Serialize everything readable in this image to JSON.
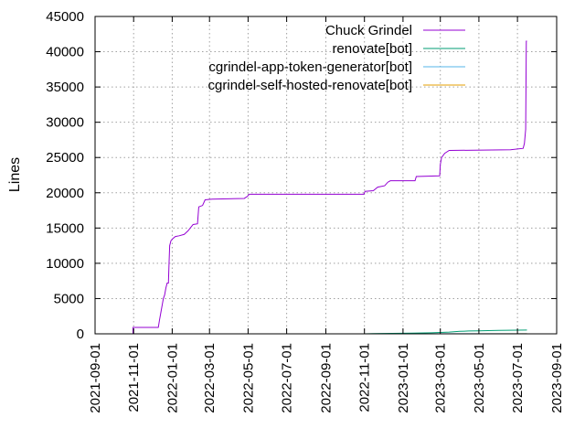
{
  "chart_data": {
    "type": "line",
    "ylabel": "Lines",
    "xlim": [
      "2021-09-01",
      "2023-09-01"
    ],
    "ylim": [
      0,
      45000
    ],
    "y_ticks": [
      0,
      5000,
      10000,
      15000,
      20000,
      25000,
      30000,
      35000,
      40000,
      45000
    ],
    "x_ticks": [
      "2021-09-01",
      "2021-11-01",
      "2022-01-01",
      "2022-03-01",
      "2022-05-01",
      "2022-07-01",
      "2022-09-01",
      "2022-11-01",
      "2023-01-01",
      "2023-03-01",
      "2023-05-01",
      "2023-07-01",
      "2023-09-01"
    ],
    "grid": true,
    "legend_position": "top-right",
    "series": [
      {
        "name": "Chuck Grindel",
        "color": "#9400d3",
        "points": [
          [
            "2021-10-31",
            0
          ],
          [
            "2021-10-31",
            900
          ],
          [
            "2021-12-10",
            900
          ],
          [
            "2021-12-12",
            2000
          ],
          [
            "2021-12-14",
            3000
          ],
          [
            "2021-12-16",
            4000
          ],
          [
            "2021-12-18",
            5000
          ],
          [
            "2021-12-20",
            5500
          ],
          [
            "2021-12-22",
            6500
          ],
          [
            "2021-12-24",
            7200
          ],
          [
            "2021-12-26",
            7200
          ],
          [
            "2021-12-27",
            10000
          ],
          [
            "2021-12-28",
            12500
          ],
          [
            "2021-12-30",
            13200
          ],
          [
            "2022-01-02",
            13500
          ],
          [
            "2022-01-06",
            13800
          ],
          [
            "2022-01-12",
            13900
          ],
          [
            "2022-01-20",
            14100
          ],
          [
            "2022-01-26",
            14600
          ],
          [
            "2022-02-03",
            15500
          ],
          [
            "2022-02-10",
            15600
          ],
          [
            "2022-02-12",
            18000
          ],
          [
            "2022-02-18",
            18200
          ],
          [
            "2022-02-22",
            19000
          ],
          [
            "2022-03-05",
            19100
          ],
          [
            "2022-04-25",
            19200
          ],
          [
            "2022-04-30",
            19500
          ],
          [
            "2022-05-03",
            19800
          ],
          [
            "2022-10-31",
            19800
          ],
          [
            "2022-11-02",
            20200
          ],
          [
            "2022-11-15",
            20300
          ],
          [
            "2022-11-22",
            20800
          ],
          [
            "2022-12-03",
            21000
          ],
          [
            "2022-12-08",
            21500
          ],
          [
            "2022-12-12",
            21700
          ],
          [
            "2023-01-20",
            21700
          ],
          [
            "2023-01-22",
            22300
          ],
          [
            "2023-02-28",
            22400
          ],
          [
            "2023-03-01",
            24000
          ],
          [
            "2023-03-03",
            25000
          ],
          [
            "2023-03-08",
            25600
          ],
          [
            "2023-03-15",
            26000
          ],
          [
            "2023-06-20",
            26100
          ],
          [
            "2023-07-10",
            26300
          ],
          [
            "2023-07-12",
            27000
          ],
          [
            "2023-07-14",
            29000
          ],
          [
            "2023-07-15",
            41500
          ],
          [
            "2023-07-16",
            41500
          ]
        ]
      },
      {
        "name": "renovate[bot]",
        "color": "#009e73",
        "points": [
          [
            "2022-10-31",
            0
          ],
          [
            "2022-11-15",
            30
          ],
          [
            "2022-12-15",
            60
          ],
          [
            "2023-01-15",
            90
          ],
          [
            "2023-02-15",
            150
          ],
          [
            "2023-03-01",
            200
          ],
          [
            "2023-03-15",
            250
          ],
          [
            "2023-04-01",
            350
          ],
          [
            "2023-04-15",
            400
          ],
          [
            "2023-05-01",
            420
          ],
          [
            "2023-05-15",
            450
          ],
          [
            "2023-06-01",
            480
          ],
          [
            "2023-07-01",
            520
          ],
          [
            "2023-07-16",
            540
          ]
        ]
      },
      {
        "name": "cgrindel-app-token-generator[bot]",
        "color": "#56b4e9",
        "points": [
          [
            "2022-11-01",
            0
          ],
          [
            "2023-07-16",
            20
          ]
        ]
      },
      {
        "name": "cgrindel-self-hosted-renovate[bot]",
        "color": "#e69f00",
        "points": [
          [
            "2022-11-01",
            0
          ],
          [
            "2023-07-16",
            10
          ]
        ]
      }
    ]
  }
}
